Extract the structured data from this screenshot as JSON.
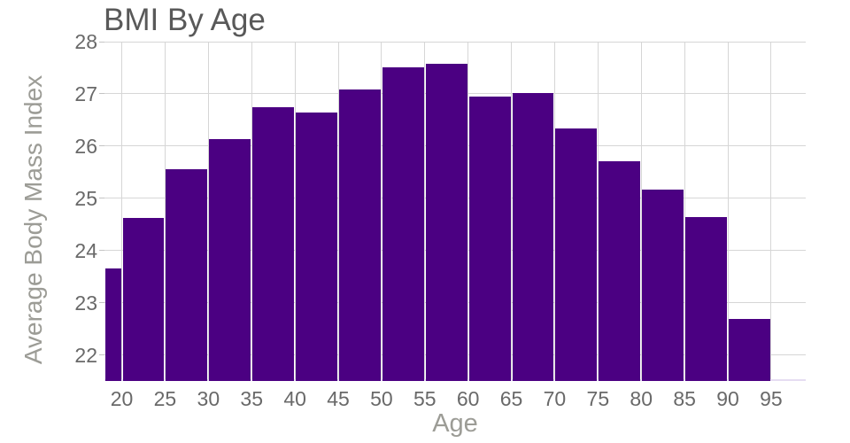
{
  "chart_data": {
    "type": "bar",
    "title": "BMI By Age",
    "xlabel": "Age",
    "ylabel": "Average Body Mass Index",
    "x_ticks": [
      20,
      25,
      30,
      35,
      40,
      45,
      50,
      55,
      60,
      65,
      70,
      75,
      80,
      85,
      90,
      95
    ],
    "y_ticks": [
      22,
      23,
      24,
      25,
      26,
      27,
      28
    ],
    "xlim": [
      18,
      99
    ],
    "ylim": [
      21.5,
      28
    ],
    "grid": true,
    "legend": false,
    "bins": [
      [
        18,
        20
      ],
      [
        20,
        25
      ],
      [
        25,
        30
      ],
      [
        30,
        35
      ],
      [
        35,
        40
      ],
      [
        40,
        45
      ],
      [
        45,
        50
      ],
      [
        50,
        55
      ],
      [
        55,
        60
      ],
      [
        60,
        65
      ],
      [
        65,
        70
      ],
      [
        70,
        75
      ],
      [
        75,
        80
      ],
      [
        80,
        85
      ],
      [
        85,
        90
      ],
      [
        90,
        95
      ]
    ],
    "values": [
      23.65,
      24.63,
      25.55,
      26.13,
      26.74,
      26.64,
      27.08,
      27.51,
      27.57,
      26.95,
      27.02,
      26.33,
      25.71,
      25.16,
      24.64,
      22.68
    ]
  },
  "colors": {
    "bar": "#4b0082",
    "grid": "#d6d6d6",
    "tick_text": "#696969",
    "title_text": "#595959",
    "axis_title_text": "#9c9c96",
    "baseline": "#e6ddf2",
    "background": "#ffffff"
  }
}
